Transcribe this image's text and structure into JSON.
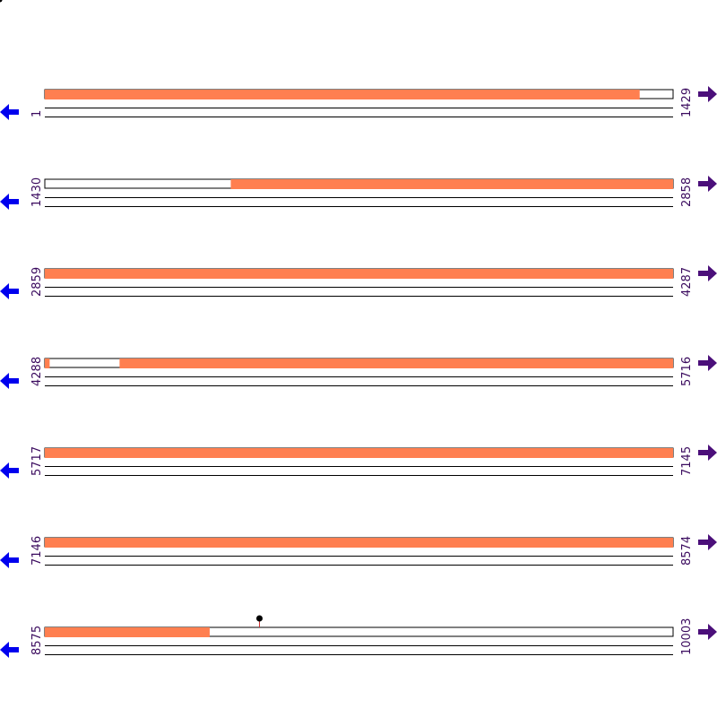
{
  "colors": {
    "feature": "#ff7f50",
    "left_arrow": "#0000ee",
    "right_arrow": "#4b0f7a",
    "label": "#3a0a5e",
    "marker": "#000000"
  },
  "icons": {
    "left": "arrow-left",
    "right": "arrow-right"
  },
  "rows": [
    {
      "start": "1",
      "end": "1429",
      "start_value": 1,
      "end_value": 1429,
      "features": [
        [
          1,
          1353
        ]
      ]
    },
    {
      "start": "1430",
      "end": "2858",
      "start_value": 1430,
      "end_value": 2858,
      "features": [
        [
          1853,
          2858
        ]
      ]
    },
    {
      "start": "2859",
      "end": "4287",
      "start_value": 2859,
      "end_value": 4287,
      "features": [
        [
          2859,
          4287
        ]
      ]
    },
    {
      "start": "4288",
      "end": "5716",
      "start_value": 4288,
      "end_value": 5716,
      "features": [
        [
          4288,
          4298
        ],
        [
          4458,
          5716
        ]
      ]
    },
    {
      "start": "5717",
      "end": "7145",
      "start_value": 5717,
      "end_value": 7145,
      "features": [
        [
          5717,
          7145
        ]
      ]
    },
    {
      "start": "7146",
      "end": "8574",
      "start_value": 7146,
      "end_value": 8574,
      "features": [
        [
          7146,
          8574
        ]
      ]
    },
    {
      "start": "8575",
      "end": "10003",
      "start_value": 8575,
      "end_value": 10003,
      "features": [
        [
          8575,
          8949
        ]
      ]
    }
  ],
  "markers": [
    {
      "row": 6,
      "position": 9062
    }
  ]
}
